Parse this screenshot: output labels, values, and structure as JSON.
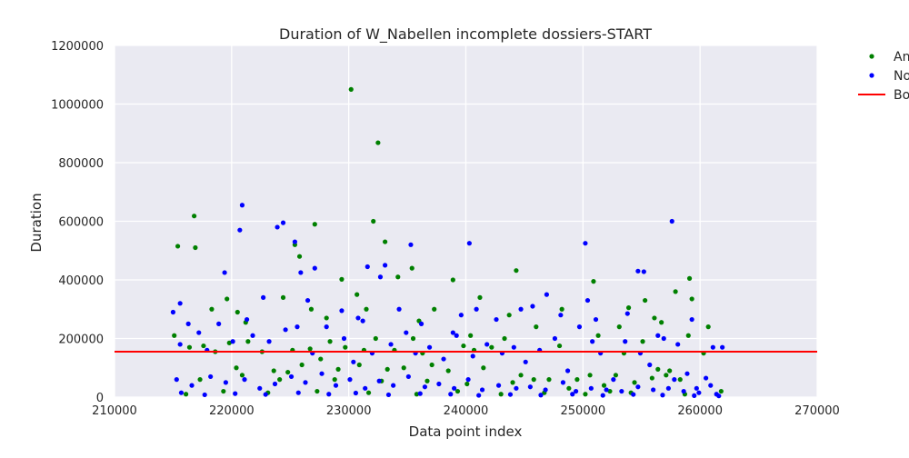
{
  "chart_data": {
    "type": "scatter",
    "title": "Duration of W_Nabellen incomplete dossiers-START",
    "xlabel": "Data point index",
    "ylabel": "Duration",
    "xlim": [
      210000,
      270000
    ],
    "ylim": [
      0,
      1200000
    ],
    "x_ticks": [
      "210000",
      "220000",
      "230000",
      "240000",
      "250000",
      "260000",
      "270000"
    ],
    "y_ticks": [
      "0",
      "200000",
      "400000",
      "600000",
      "800000",
      "1000000",
      "1200000"
    ],
    "grid": true,
    "legend_position": "outside top-right (partially cut off)",
    "series": [
      {
        "name": "An",
        "color": "#008000",
        "marker": "dot",
        "points": [
          [
            215400,
            515000
          ],
          [
            216800,
            618000
          ],
          [
            216900,
            510000
          ],
          [
            218300,
            300000
          ],
          [
            219600,
            335000
          ],
          [
            220500,
            290000
          ],
          [
            221200,
            255000
          ],
          [
            224400,
            340000
          ],
          [
            225400,
            520000
          ],
          [
            225800,
            480000
          ],
          [
            226800,
            300000
          ],
          [
            227100,
            590000
          ],
          [
            228100,
            270000
          ],
          [
            229400,
            402000
          ],
          [
            230200,
            1050000
          ],
          [
            230700,
            350000
          ],
          [
            231500,
            300000
          ],
          [
            232500,
            868000
          ],
          [
            232100,
            600000
          ],
          [
            233100,
            530000
          ],
          [
            234200,
            410000
          ],
          [
            235400,
            440000
          ],
          [
            236000,
            260000
          ],
          [
            237300,
            300000
          ],
          [
            238900,
            400000
          ],
          [
            240400,
            210000
          ],
          [
            241200,
            340000
          ],
          [
            243700,
            280000
          ],
          [
            244300,
            432000
          ],
          [
            246000,
            240000
          ],
          [
            248200,
            300000
          ],
          [
            250900,
            395000
          ],
          [
            251300,
            210000
          ],
          [
            253100,
            240000
          ],
          [
            253900,
            305000
          ],
          [
            255300,
            330000
          ],
          [
            256100,
            270000
          ],
          [
            256700,
            255000
          ],
          [
            257900,
            360000
          ],
          [
            259100,
            405000
          ],
          [
            259300,
            335000
          ],
          [
            260700,
            240000
          ],
          [
            215100,
            210000
          ],
          [
            216400,
            170000
          ],
          [
            217600,
            175000
          ],
          [
            218600,
            155000
          ],
          [
            219800,
            185000
          ],
          [
            220400,
            100000
          ],
          [
            221400,
            190000
          ],
          [
            222600,
            155000
          ],
          [
            223600,
            90000
          ],
          [
            224100,
            60000
          ],
          [
            225200,
            160000
          ],
          [
            226000,
            110000
          ],
          [
            226700,
            165000
          ],
          [
            227600,
            130000
          ],
          [
            228400,
            190000
          ],
          [
            229100,
            95000
          ],
          [
            229700,
            170000
          ],
          [
            230900,
            110000
          ],
          [
            231300,
            160000
          ],
          [
            232300,
            200000
          ],
          [
            233300,
            95000
          ],
          [
            233900,
            160000
          ],
          [
            234700,
            100000
          ],
          [
            235500,
            200000
          ],
          [
            236300,
            150000
          ],
          [
            237100,
            110000
          ],
          [
            238500,
            90000
          ],
          [
            239800,
            175000
          ],
          [
            240700,
            160000
          ],
          [
            241500,
            100000
          ],
          [
            242200,
            170000
          ],
          [
            243300,
            200000
          ],
          [
            244700,
            75000
          ],
          [
            245800,
            60000
          ],
          [
            247100,
            60000
          ],
          [
            248000,
            175000
          ],
          [
            249500,
            60000
          ],
          [
            250600,
            75000
          ],
          [
            251800,
            40000
          ],
          [
            252800,
            75000
          ],
          [
            253500,
            150000
          ],
          [
            254400,
            50000
          ],
          [
            255100,
            190000
          ],
          [
            256400,
            95000
          ],
          [
            257400,
            90000
          ],
          [
            258300,
            60000
          ],
          [
            259000,
            210000
          ],
          [
            260300,
            150000
          ],
          [
            261800,
            20000
          ],
          [
            217300,
            60000
          ],
          [
            220900,
            75000
          ],
          [
            224800,
            85000
          ],
          [
            228800,
            60000
          ],
          [
            232800,
            55000
          ],
          [
            236700,
            55000
          ],
          [
            240100,
            45000
          ],
          [
            244000,
            50000
          ],
          [
            248800,
            30000
          ],
          [
            252300,
            20000
          ],
          [
            255900,
            65000
          ],
          [
            257100,
            75000
          ],
          [
            216100,
            10000
          ],
          [
            219300,
            20000
          ],
          [
            223100,
            15000
          ],
          [
            227300,
            20000
          ],
          [
            231700,
            15000
          ],
          [
            235800,
            10000
          ],
          [
            239300,
            20000
          ],
          [
            243000,
            10000
          ],
          [
            246700,
            15000
          ],
          [
            250200,
            10000
          ],
          [
            254100,
            15000
          ],
          [
            258700,
            10000
          ]
        ]
      },
      {
        "name": "No",
        "color": "#0000ff",
        "marker": "dot",
        "points": [
          [
            215000,
            290000
          ],
          [
            215600,
            180000
          ],
          [
            217200,
            220000
          ],
          [
            219400,
            425000
          ],
          [
            220700,
            570000
          ],
          [
            220900,
            655000
          ],
          [
            221300,
            265000
          ],
          [
            222700,
            340000
          ],
          [
            223900,
            580000
          ],
          [
            224400,
            595000
          ],
          [
            225400,
            530000
          ],
          [
            225900,
            425000
          ],
          [
            226500,
            330000
          ],
          [
            227100,
            440000
          ],
          [
            229400,
            295000
          ],
          [
            230800,
            270000
          ],
          [
            231600,
            445000
          ],
          [
            232700,
            410000
          ],
          [
            233100,
            450000
          ],
          [
            234300,
            300000
          ],
          [
            235300,
            520000
          ],
          [
            236200,
            250000
          ],
          [
            238900,
            220000
          ],
          [
            239600,
            280000
          ],
          [
            240300,
            525000
          ],
          [
            240900,
            300000
          ],
          [
            242600,
            265000
          ],
          [
            244700,
            300000
          ],
          [
            245700,
            310000
          ],
          [
            246900,
            350000
          ],
          [
            248100,
            280000
          ],
          [
            250200,
            525000
          ],
          [
            250400,
            330000
          ],
          [
            251100,
            265000
          ],
          [
            253800,
            285000
          ],
          [
            254700,
            430000
          ],
          [
            255200,
            428000
          ],
          [
            256400,
            210000
          ],
          [
            257600,
            600000
          ],
          [
            258100,
            180000
          ],
          [
            259300,
            265000
          ],
          [
            260500,
            65000
          ],
          [
            261100,
            170000
          ],
          [
            261900,
            170000
          ],
          [
            215600,
            320000
          ],
          [
            216300,
            250000
          ],
          [
            217900,
            160000
          ],
          [
            218900,
            250000
          ],
          [
            220100,
            190000
          ],
          [
            221800,
            210000
          ],
          [
            223200,
            190000
          ],
          [
            224600,
            230000
          ],
          [
            225600,
            240000
          ],
          [
            226900,
            150000
          ],
          [
            228100,
            240000
          ],
          [
            229600,
            200000
          ],
          [
            230400,
            120000
          ],
          [
            231200,
            260000
          ],
          [
            232000,
            150000
          ],
          [
            233600,
            180000
          ],
          [
            234900,
            220000
          ],
          [
            235700,
            150000
          ],
          [
            236900,
            170000
          ],
          [
            238100,
            130000
          ],
          [
            239200,
            210000
          ],
          [
            240600,
            140000
          ],
          [
            241800,
            180000
          ],
          [
            243100,
            150000
          ],
          [
            244100,
            170000
          ],
          [
            245100,
            120000
          ],
          [
            246300,
            160000
          ],
          [
            247600,
            200000
          ],
          [
            248700,
            90000
          ],
          [
            249700,
            240000
          ],
          [
            250800,
            190000
          ],
          [
            251500,
            150000
          ],
          [
            252600,
            60000
          ],
          [
            253600,
            190000
          ],
          [
            254900,
            150000
          ],
          [
            255700,
            110000
          ],
          [
            256900,
            200000
          ],
          [
            257800,
            60000
          ],
          [
            258900,
            80000
          ],
          [
            259700,
            30000
          ],
          [
            260900,
            40000
          ],
          [
            215300,
            60000
          ],
          [
            216600,
            40000
          ],
          [
            218200,
            70000
          ],
          [
            219500,
            50000
          ],
          [
            221100,
            60000
          ],
          [
            222400,
            30000
          ],
          [
            223700,
            45000
          ],
          [
            225100,
            70000
          ],
          [
            226300,
            50000
          ],
          [
            227700,
            80000
          ],
          [
            228900,
            40000
          ],
          [
            230100,
            60000
          ],
          [
            231400,
            30000
          ],
          [
            232600,
            55000
          ],
          [
            233800,
            40000
          ],
          [
            235100,
            70000
          ],
          [
            236500,
            35000
          ],
          [
            237700,
            45000
          ],
          [
            239000,
            30000
          ],
          [
            240200,
            60000
          ],
          [
            241400,
            25000
          ],
          [
            242800,
            40000
          ],
          [
            244300,
            30000
          ],
          [
            245500,
            35000
          ],
          [
            246800,
            25000
          ],
          [
            248300,
            50000
          ],
          [
            249400,
            20000
          ],
          [
            250700,
            30000
          ],
          [
            252000,
            25000
          ],
          [
            253300,
            20000
          ],
          [
            254700,
            35000
          ],
          [
            256000,
            25000
          ],
          [
            257300,
            30000
          ],
          [
            258600,
            20000
          ],
          [
            259900,
            15000
          ],
          [
            261400,
            10000
          ],
          [
            215700,
            15000
          ],
          [
            217700,
            8000
          ],
          [
            220300,
            12000
          ],
          [
            222900,
            9000
          ],
          [
            225700,
            15000
          ],
          [
            228300,
            10000
          ],
          [
            230600,
            14000
          ],
          [
            233400,
            8000
          ],
          [
            236100,
            12000
          ],
          [
            238700,
            10000
          ],
          [
            241100,
            6000
          ],
          [
            243800,
            9000
          ],
          [
            246400,
            7000
          ],
          [
            249100,
            10000
          ],
          [
            251700,
            6000
          ],
          [
            254300,
            9000
          ],
          [
            256800,
            7000
          ],
          [
            259500,
            5000
          ],
          [
            261600,
            4000
          ]
        ]
      }
    ],
    "lines": [
      {
        "name": "Bo",
        "color": "#ff0000",
        "y": 155000
      }
    ]
  }
}
